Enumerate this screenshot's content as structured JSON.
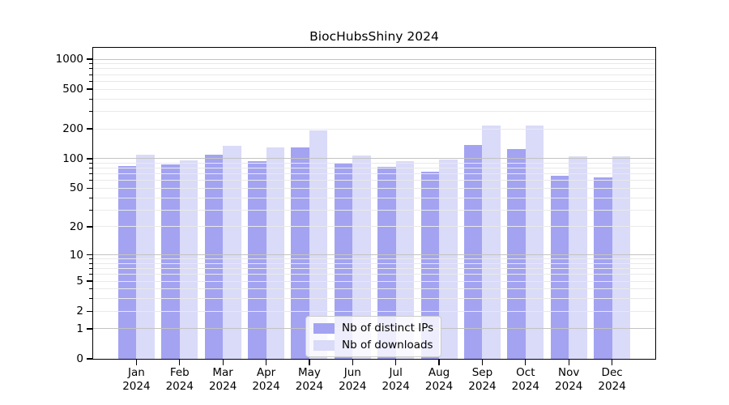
{
  "chart_data": {
    "type": "bar",
    "title": "BiocHubsShiny 2024",
    "year_label": "2024",
    "categories": [
      "Jan",
      "Feb",
      "Mar",
      "Apr",
      "May",
      "Jun",
      "Jul",
      "Aug",
      "Sep",
      "Oct",
      "Nov",
      "Dec"
    ],
    "series": [
      {
        "name": "Nb of distinct IPs",
        "color": "#a3a3f2",
        "values": [
          84,
          88,
          110,
          95,
          130,
          90,
          82,
          74,
          137,
          126,
          67,
          64
        ]
      },
      {
        "name": "Nb of downloads",
        "color": "#dadaf9",
        "values": [
          110,
          96,
          135,
          129,
          194,
          108,
          95,
          98,
          214,
          214,
          106,
          106
        ]
      }
    ],
    "yticks": [
      0,
      1,
      2,
      5,
      10,
      20,
      50,
      100,
      200,
      500,
      1000
    ],
    "yscale": "log1p",
    "ylim": [
      0,
      1300
    ],
    "grid": true,
    "legend_position": "inside lower center",
    "colors": {
      "major_grid": "#c3c3c3",
      "minor_grid": "#e9e9e9",
      "spine": "#000000",
      "background": "#ffffff"
    }
  }
}
